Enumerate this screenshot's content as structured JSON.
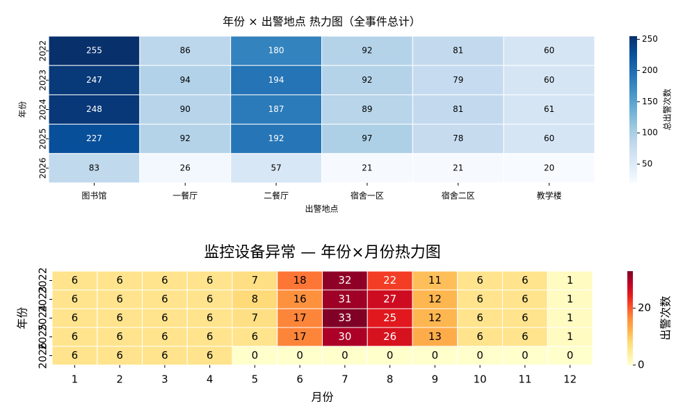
{
  "chart_data": [
    {
      "type": "heatmap",
      "title": "年份 × 出警地点 热力图（全事件总计）",
      "xlabel": "出警地点",
      "ylabel": "年份",
      "colorbar_label": "总出警次数",
      "x": [
        "图书馆",
        "一餐厅",
        "二餐厅",
        "宿舍一区",
        "宿舍二区",
        "教学楼"
      ],
      "y": [
        "2022",
        "2023",
        "2024",
        "2025",
        "2026"
      ],
      "values": [
        [
          255,
          86,
          180,
          92,
          81,
          60
        ],
        [
          247,
          94,
          194,
          92,
          79,
          60
        ],
        [
          248,
          90,
          187,
          89,
          81,
          61
        ],
        [
          227,
          92,
          192,
          97,
          78,
          60
        ],
        [
          83,
          26,
          57,
          21,
          21,
          20
        ]
      ],
      "clim": [
        20,
        255
      ],
      "cticks": [
        50,
        100,
        150,
        200,
        250
      ],
      "colormap": [
        "#f7fbff",
        "#deebf7",
        "#c6dbef",
        "#9ecae1",
        "#6baed6",
        "#4292c6",
        "#2171b5",
        "#08519c",
        "#08306b"
      ]
    },
    {
      "type": "heatmap",
      "title": "监控设备异常 — 年份×月份热力图",
      "xlabel": "月份",
      "ylabel": "年份",
      "colorbar_label": "出警次数",
      "x": [
        "1",
        "2",
        "3",
        "4",
        "5",
        "6",
        "7",
        "8",
        "9",
        "10",
        "11",
        "12"
      ],
      "y": [
        "2022",
        "2023",
        "2024",
        "2025",
        "2026"
      ],
      "values": [
        [
          6,
          6,
          6,
          6,
          7,
          18,
          32,
          22,
          11,
          6,
          6,
          1
        ],
        [
          6,
          6,
          6,
          6,
          8,
          16,
          31,
          27,
          12,
          6,
          6,
          1
        ],
        [
          6,
          6,
          6,
          6,
          7,
          17,
          33,
          25,
          12,
          6,
          6,
          1
        ],
        [
          6,
          6,
          6,
          6,
          6,
          17,
          30,
          26,
          13,
          6,
          6,
          1
        ],
        [
          6,
          6,
          6,
          6,
          0,
          0,
          0,
          0,
          0,
          0,
          0,
          0
        ]
      ],
      "clim": [
        0,
        33
      ],
      "cticks": [
        0,
        20
      ],
      "colormap": [
        "#ffffcc",
        "#ffeda0",
        "#fed976",
        "#feb24c",
        "#fd8d3c",
        "#fc4e2a",
        "#e31a1c",
        "#bd0026",
        "#800026"
      ]
    }
  ]
}
